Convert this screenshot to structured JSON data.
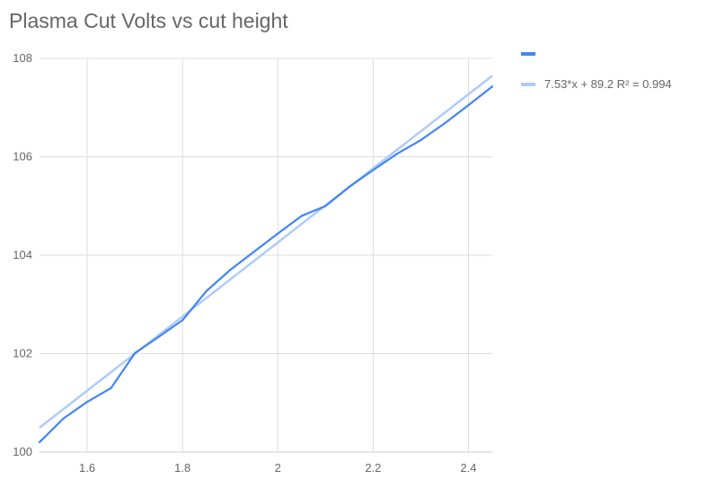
{
  "chart_data": {
    "type": "line",
    "title": "Plasma Cut Volts vs cut height",
    "xlabel": "",
    "ylabel": "",
    "xlim": [
      1.5,
      2.45
    ],
    "ylim": [
      100,
      108
    ],
    "x_ticks": [
      "1.6",
      "1.8",
      "2",
      "2.2",
      "2.4"
    ],
    "y_ticks": [
      "100",
      "102",
      "104",
      "106",
      "108"
    ],
    "grid": true,
    "legend_position": "right",
    "series": [
      {
        "name": "",
        "color": "#4285f4",
        "x": [
          1.5,
          1.55,
          1.6,
          1.65,
          1.7,
          1.75,
          1.8,
          1.85,
          1.9,
          1.95,
          2.0,
          2.05,
          2.1,
          2.15,
          2.2,
          2.25,
          2.3,
          2.35,
          2.4,
          2.45
        ],
        "values": [
          100.2,
          100.68,
          101.02,
          101.3,
          102.01,
          102.34,
          102.68,
          103.27,
          103.7,
          104.07,
          104.44,
          104.8,
          105.0,
          105.39,
          105.73,
          106.06,
          106.34,
          106.68,
          107.05,
          107.43
        ]
      }
    ],
    "trendline": {
      "label": "7.53*x + 89.2 R² = 0.994",
      "slope": 7.53,
      "intercept": 89.2,
      "color": "#aecbfa"
    }
  }
}
